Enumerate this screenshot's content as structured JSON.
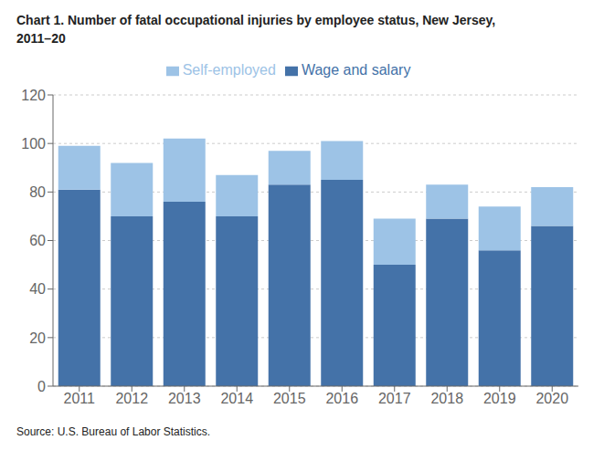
{
  "chart_data": {
    "type": "bar",
    "title": "Chart 1. Number of fatal occupational injuries by employee status, New Jersey,\n2011–20",
    "categories": [
      "2011",
      "2012",
      "2013",
      "2014",
      "2015",
      "2016",
      "2017",
      "2018",
      "2019",
      "2020"
    ],
    "series": [
      {
        "name": "Wage and salary",
        "color": "#4472a8",
        "values": [
          81,
          70,
          76,
          70,
          83,
          85,
          50,
          69,
          56,
          66
        ]
      },
      {
        "name": "Self-employed",
        "color": "#9dc3e6",
        "values": [
          18,
          22,
          26,
          17,
          14,
          16,
          19,
          14,
          18,
          16
        ]
      }
    ],
    "stacked": true,
    "ylim": [
      0,
      120
    ],
    "yticks": [
      0,
      20,
      40,
      60,
      80,
      100,
      120
    ],
    "grid": true,
    "legend": "top",
    "annotations": [
      "Source: U.S. Bureau of Labor Statistics."
    ]
  }
}
